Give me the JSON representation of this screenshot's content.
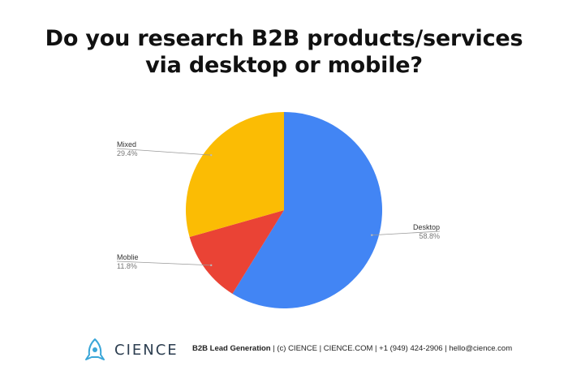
{
  "chart_data": {
    "type": "pie",
    "title_lines": [
      "Do you research B2B products/services",
      "via desktop or mobile?"
    ],
    "slices": [
      {
        "label": "Desktop",
        "value": 58.8,
        "value_text": "58.8%",
        "color": "#4285f4"
      },
      {
        "label": "Moblie",
        "value": 11.8,
        "value_text": "11.8%",
        "color": "#ea4335"
      },
      {
        "label": "Mixed",
        "value": 29.4,
        "value_text": "29.4%",
        "color": "#fbbc04"
      }
    ]
  },
  "footer": {
    "logo_text": "CIENCE",
    "logo_icon": "rocket-icon",
    "tagline": "B2B Lead Generation",
    "info": " | (c) CIENCE | CIENCE.COM | +1 (949) 424-2906 | hello@cience.com"
  }
}
